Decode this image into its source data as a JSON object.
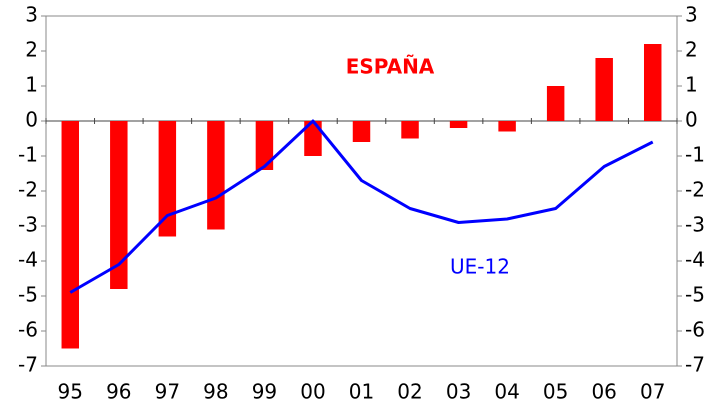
{
  "chart_data": {
    "type": "bar-line",
    "categories": [
      "95",
      "96",
      "97",
      "98",
      "99",
      "00",
      "01",
      "02",
      "03",
      "04",
      "05",
      "06",
      "07"
    ],
    "series": [
      {
        "name": "ESPAÑA",
        "type": "bar",
        "color": "#ff0000",
        "values": [
          -6.5,
          -4.8,
          -3.3,
          -3.1,
          -1.4,
          -1.0,
          -0.6,
          -0.5,
          -0.2,
          -0.3,
          1.0,
          1.8,
          2.2
        ]
      },
      {
        "name": "UE-12",
        "type": "line",
        "color": "#0000ff",
        "axis": "y2",
        "values": [
          -4.9,
          -4.1,
          -2.7,
          -2.2,
          -1.3,
          0,
          -1.7,
          -2.5,
          -2.9,
          -2.8,
          -2.5,
          -1.3,
          -0.6
        ]
      }
    ],
    "ylim": [
      -7,
      3
    ],
    "yticks": [
      -7,
      -6,
      -5,
      -4,
      -3,
      -2,
      -1,
      0,
      1,
      2,
      3
    ],
    "y2lim": [
      -7,
      3
    ],
    "y2ticks": [
      -7,
      -6,
      -5,
      -4,
      -3,
      -2,
      -1,
      0,
      1,
      2,
      3
    ],
    "grid": false
  }
}
